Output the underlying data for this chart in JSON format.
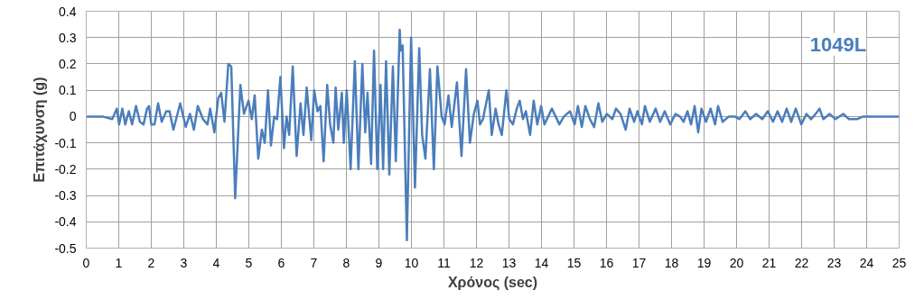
{
  "chart_data": {
    "type": "line",
    "xlabel": "Χρόνος (sec)",
    "ylabel": "Επιτάχυνση (g)",
    "annotations": [
      "1049L"
    ],
    "xlim": [
      0,
      25
    ],
    "xticks": [
      0,
      1,
      2,
      3,
      4,
      5,
      6,
      7,
      8,
      9,
      10,
      11,
      12,
      13,
      14,
      15,
      16,
      17,
      18,
      19,
      20,
      21,
      22,
      23,
      24,
      25
    ],
    "ylim": [
      -0.5,
      0.4
    ],
    "yticks": [
      -0.5,
      -0.4,
      -0.3,
      -0.2,
      -0.1,
      0,
      0.1,
      0.2,
      0.3,
      0.4
    ],
    "grid": true,
    "marker": "none",
    "line_style": "solid",
    "series": [
      {
        "color": "#4a7ebb",
        "x": [
          0,
          0.5,
          0.8,
          0.94,
          1.01,
          1.11,
          1.2,
          1.31,
          1.41,
          1.53,
          1.65,
          1.76,
          1.87,
          1.93,
          2.0,
          2.1,
          2.21,
          2.32,
          2.46,
          2.56,
          2.68,
          2.89,
          3.06,
          3.19,
          3.31,
          3.43,
          3.59,
          3.73,
          3.81,
          3.94,
          4.06,
          4.15,
          4.25,
          4.37,
          4.46,
          4.58,
          4.74,
          4.85,
          4.99,
          5.09,
          5.18,
          5.29,
          5.4,
          5.49,
          5.59,
          5.68,
          5.78,
          5.87,
          5.97,
          6.08,
          6.16,
          6.24,
          6.35,
          6.47,
          6.59,
          6.68,
          6.78,
          6.92,
          7.01,
          7.11,
          7.2,
          7.3,
          7.41,
          7.5,
          7.6,
          7.67,
          7.75,
          7.86,
          7.92,
          8.01,
          8.13,
          8.26,
          8.37,
          8.49,
          8.58,
          8.65,
          8.76,
          8.85,
          8.95,
          9.05,
          9.13,
          9.22,
          9.32,
          9.43,
          9.52,
          9.64,
          9.67,
          9.73,
          9.86,
          9.99,
          10.11,
          10.24,
          10.33,
          10.43,
          10.57,
          10.69,
          10.8,
          10.93,
          11.02,
          11.14,
          11.24,
          11.4,
          11.54,
          11.68,
          11.8,
          11.92,
          12.03,
          12.11,
          12.2,
          12.38,
          12.47,
          12.59,
          12.68,
          12.78,
          12.92,
          13.01,
          13.12,
          13.24,
          13.33,
          13.43,
          13.52,
          13.65,
          13.76,
          13.87,
          13.99,
          14.09,
          14.32,
          14.55,
          14.69,
          14.88,
          15.02,
          15.12,
          15.24,
          15.35,
          15.49,
          15.62,
          15.75,
          15.87,
          16.01,
          16.18,
          16.29,
          16.43,
          16.59,
          16.71,
          16.85,
          16.95,
          17.09,
          17.18,
          17.33,
          17.51,
          17.65,
          17.79,
          17.96,
          18.12,
          18.26,
          18.37,
          18.49,
          18.6,
          18.71,
          18.82,
          18.92,
          19.06,
          19.2,
          19.34,
          19.43,
          19.57,
          19.76,
          19.95,
          20.09,
          20.27,
          20.42,
          20.6,
          20.79,
          20.96,
          21.12,
          21.26,
          21.4,
          21.54,
          21.68,
          21.82,
          21.99,
          22.15,
          22.29,
          22.43,
          22.55,
          22.67,
          22.86,
          23.04,
          23.28,
          23.46,
          23.7,
          23.89,
          24.27,
          25
        ],
        "values": [
          0,
          0,
          -0.01,
          0.03,
          -0.03,
          0.03,
          -0.03,
          0.02,
          -0.03,
          0.04,
          -0.02,
          -0.03,
          0.03,
          0.04,
          -0.03,
          -0.03,
          0.05,
          -0.02,
          0.02,
          0.02,
          -0.05,
          0.05,
          -0.04,
          0.01,
          -0.05,
          0.04,
          -0.01,
          -0.03,
          0.03,
          -0.06,
          0.07,
          0.09,
          -0.02,
          0.2,
          0.19,
          -0.31,
          0.12,
          0.01,
          0.06,
          -0.01,
          0.08,
          -0.16,
          -0.05,
          -0.1,
          0.1,
          -0.11,
          0,
          -0.01,
          0.15,
          -0.12,
          0,
          -0.07,
          0.19,
          -0.15,
          0.05,
          -0.07,
          0.11,
          -0.09,
          0.1,
          0.02,
          0.04,
          -0.17,
          0.12,
          -0.03,
          -0.1,
          0.11,
          -0.05,
          0.09,
          -0.1,
          0.1,
          -0.2,
          0.21,
          -0.2,
          0.2,
          -0.06,
          0.09,
          -0.18,
          0.25,
          -0.2,
          0.12,
          -0.2,
          0.21,
          -0.22,
          0.19,
          -0.17,
          0.33,
          0.25,
          0.27,
          -0.47,
          0.3,
          -0.27,
          0.26,
          -0.07,
          -0.16,
          0.18,
          -0.2,
          0.19,
          0,
          -0.03,
          0.08,
          -0.04,
          0.13,
          -0.15,
          0.18,
          -0.1,
          0.01,
          0.06,
          -0.03,
          -0.01,
          0.1,
          -0.07,
          0.03,
          -0.03,
          -0.07,
          0.1,
          -0.01,
          -0.03,
          0.03,
          0.06,
          -0.01,
          0.02,
          -0.07,
          0.06,
          -0.03,
          0.04,
          -0.03,
          0.03,
          -0.03,
          0,
          0.02,
          -0.03,
          0.04,
          -0.04,
          0.04,
          -0.01,
          -0.04,
          0.05,
          -0.02,
          0.01,
          -0.01,
          0.03,
          0.01,
          -0.05,
          0.03,
          -0.02,
          0.02,
          -0.03,
          0.04,
          -0.02,
          0.03,
          -0.02,
          0.02,
          -0.03,
          0.01,
          0,
          -0.02,
          0.02,
          -0.03,
          0.04,
          -0.06,
          0.03,
          -0.02,
          0.03,
          -0.03,
          0.04,
          -0.02,
          0,
          0,
          -0.01,
          0.02,
          -0.01,
          0.01,
          -0.01,
          0.02,
          -0.02,
          0.02,
          -0.02,
          0.03,
          -0.02,
          0.03,
          -0.03,
          0.01,
          -0.01,
          0.01,
          0.03,
          -0.01,
          0.01,
          -0.01,
          0.01,
          -0.01,
          -0.01,
          0,
          0,
          0
        ]
      }
    ]
  }
}
